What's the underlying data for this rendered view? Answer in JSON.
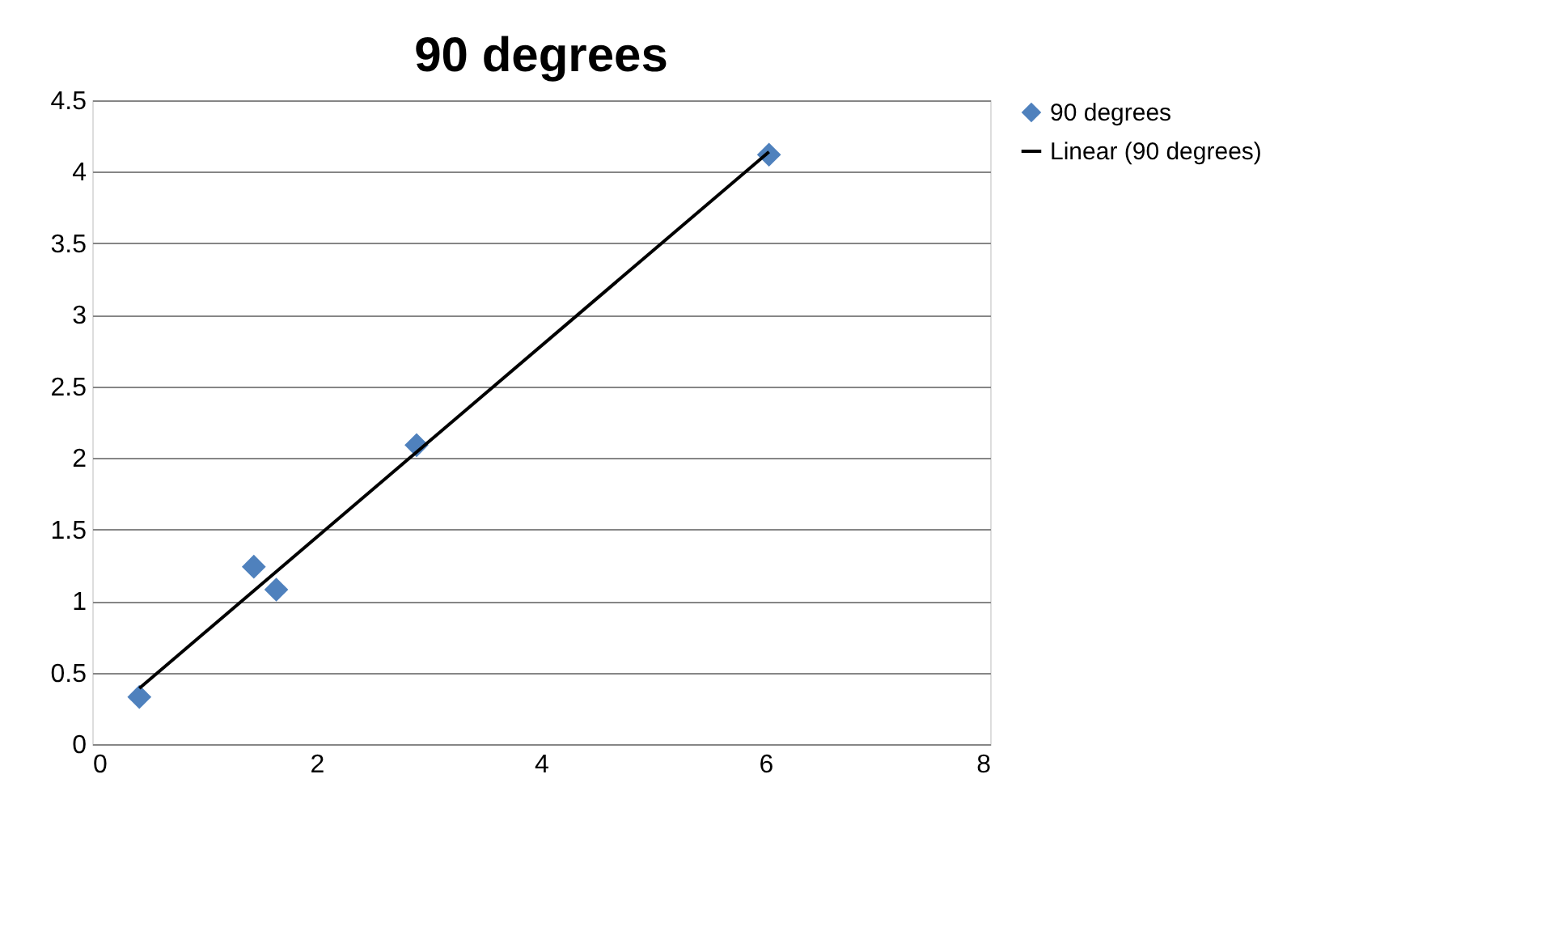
{
  "chart_data": {
    "type": "scatter",
    "title": "90 degrees",
    "series": [
      {
        "name": "90 degrees",
        "type": "scatter",
        "color": "#4f81bd",
        "marker": "diamond",
        "x": [
          0.42,
          1.44,
          1.64,
          2.89,
          6.03
        ],
        "values": [
          0.33,
          1.24,
          1.08,
          2.09,
          4.12
        ]
      },
      {
        "name": "Linear (90 degrees)",
        "type": "line",
        "color": "#000000",
        "line_style": "solid",
        "x": [
          0.42,
          6.03
        ],
        "values": [
          0.39,
          4.14
        ]
      }
    ],
    "xlim": [
      0,
      8
    ],
    "xticks": [
      0,
      2,
      4,
      6,
      8
    ],
    "ylim": [
      0,
      4.5
    ],
    "yticks": [
      0,
      0.5,
      1,
      1.5,
      2,
      2.5,
      3,
      3.5,
      4,
      4.5
    ],
    "grid": "y",
    "legend": "right"
  }
}
